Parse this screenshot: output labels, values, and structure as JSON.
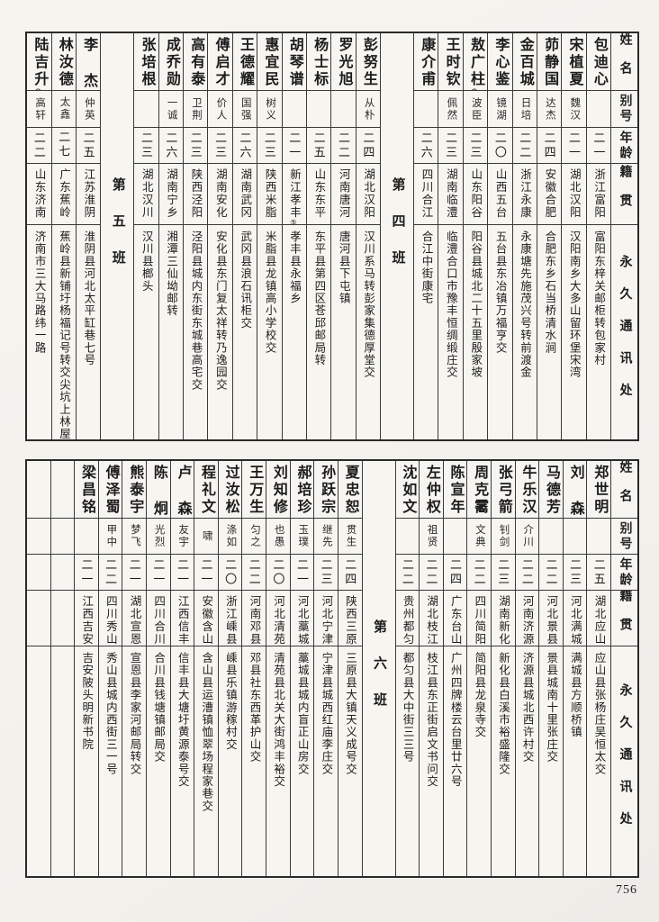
{
  "page": {
    "number": "756"
  },
  "headers": {
    "name": "姓名",
    "alias": "别号",
    "age": "年龄",
    "native": "籍贯",
    "address": "永久通讯处"
  },
  "tables": [
    {
      "id": "top",
      "columns": [
        {
          "type": "person",
          "name": "包迪心",
          "mark": "",
          "alias": "",
          "age": "二一",
          "native": "浙江富阳",
          "native_mark": "",
          "address": "富阳东梓关邮柜转包家村"
        },
        {
          "type": "person",
          "name": "宋植夏",
          "mark": "",
          "alias": "魏汉",
          "age": "二一",
          "native": "湖北汉阳",
          "native_mark": "",
          "address": "汉阳南乡大多山留环堡宋湾"
        },
        {
          "type": "person",
          "name": "茆静国",
          "mark": "",
          "alias": "达杰",
          "age": "二四",
          "native": "安徽合肥",
          "native_mark": "",
          "address": "合肥东乡石当桥清水涧"
        },
        {
          "type": "person",
          "name": "金百城",
          "mark": "",
          "alias": "日培",
          "age": "二二",
          "native": "浙江永康",
          "native_mark": "",
          "address": "永康塘先施茂兴号转前渡金"
        },
        {
          "type": "person",
          "name": "李心鉴",
          "mark": "",
          "alias": "镜湖",
          "age": "二〇",
          "native": "山西五台",
          "native_mark": "",
          "address": "五台县东冶镇万福亨交"
        },
        {
          "type": "person",
          "name": "敖广柱",
          "mark": "①",
          "alias": "波臣",
          "age": "二三",
          "native": "山东阳谷",
          "native_mark": "",
          "address": "阳谷县城北二十五里殷家坡"
        },
        {
          "type": "person",
          "name": "王时钦",
          "mark": "",
          "alias": "佩然",
          "age": "二三",
          "native": "湖南临澧",
          "native_mark": "",
          "address": "临澧合口市豫丰恒绸缎庄交"
        },
        {
          "type": "person",
          "name": "康介甫",
          "mark": "",
          "alias": "",
          "age": "二六",
          "native": "四川合江",
          "native_mark": "",
          "address": "合江中街康宅"
        },
        {
          "type": "marker",
          "label": "第四班"
        },
        {
          "type": "person",
          "name": "彭努生",
          "mark": "",
          "alias": "从朴",
          "age": "二四",
          "native": "湖北汉阳",
          "native_mark": "",
          "address": "汉川系马转彭家集德厚堂交"
        },
        {
          "type": "person",
          "name": "罗光旭",
          "mark": "",
          "alias": "",
          "age": "二二",
          "native": "河南唐河",
          "native_mark": "",
          "address": "唐河县下屯镇"
        },
        {
          "type": "person",
          "name": "杨士标",
          "mark": "",
          "alias": "",
          "age": "二五",
          "native": "山东东平",
          "native_mark": "",
          "address": "东平县第四区苍邱邮局转"
        },
        {
          "type": "person",
          "name": "胡琴谱",
          "mark": "",
          "alias": "",
          "age": "二一",
          "native": "新江孝丰",
          "native_mark": "⑤",
          "address": "孝丰县永福乡"
        },
        {
          "type": "person",
          "name": "惠宜民",
          "mark": "",
          "alias": "树义",
          "age": "二三",
          "native": "陕西米脂",
          "native_mark": "",
          "address": "米脂县龙镇高小学校交"
        },
        {
          "type": "person",
          "name": "王德耀",
          "mark": "",
          "alias": "国强",
          "age": "二六",
          "native": "湖南武冈",
          "native_mark": "",
          "address": "武冈县浪石讯柜交"
        },
        {
          "type": "person",
          "name": "傅启才",
          "mark": "",
          "alias": "价人",
          "age": "二三",
          "native": "湖南安化",
          "native_mark": "",
          "address": "安化县东门复太祥转乃逸园交"
        },
        {
          "type": "person",
          "name": "高有泰",
          "mark": "",
          "alias": "卫荆",
          "age": "二三",
          "native": "陕西泾阳",
          "native_mark": "",
          "address": "泾阳县城内东街东城巷高宅交"
        },
        {
          "type": "person",
          "name": "成乔勋",
          "mark": "",
          "alias": "一诚",
          "age": "二六",
          "native": "湖南宁乡",
          "native_mark": "",
          "address": "湘潭三仙坳邮转"
        },
        {
          "type": "person",
          "name": "张培根",
          "mark": "",
          "alias": "",
          "age": "二三",
          "native": "湖北汉川",
          "native_mark": "",
          "address": "汉川县榔头"
        },
        {
          "type": "marker",
          "label": "第五班"
        },
        {
          "type": "person",
          "name": "李杰",
          "mark": "",
          "alias": "仲英",
          "age": "二五",
          "native": "江苏淮阴",
          "native_mark": "",
          "address": "淮阴县河北太平缸巷七号"
        },
        {
          "type": "person",
          "name": "林汝德",
          "mark": "",
          "alias": "太鑫",
          "age": "二七",
          "native": "广东蕉岭",
          "native_mark": "",
          "address": "蕉岭县新铺圩杨福记号转交尖坑上林屋"
        },
        {
          "type": "person",
          "name": "陆吉升",
          "mark": "⑩",
          "alias": "高轩",
          "age": "二二",
          "native": "山东济南",
          "native_mark": "",
          "address": "济南市三大马路纬一路"
        }
      ]
    },
    {
      "id": "bottom",
      "columns": [
        {
          "type": "person",
          "name": "郑世明",
          "mark": "",
          "alias": "",
          "age": "二五",
          "native": "湖北应山",
          "native_mark": "",
          "address": "应山县张杨庄吴恒太交"
        },
        {
          "type": "person",
          "name": "刘森",
          "mark": "",
          "alias": "",
          "age": "二三",
          "native": "河北满城",
          "native_mark": "",
          "address": "满城县方顺桥镇"
        },
        {
          "type": "person",
          "name": "马德芳",
          "mark": "",
          "alias": "",
          "age": "二二",
          "native": "河北景县",
          "native_mark": "",
          "address": "景县城南十里张庄交"
        },
        {
          "type": "person",
          "name": "牛乐汉",
          "mark": "",
          "alias": "介川",
          "age": "二二",
          "native": "河南济源",
          "native_mark": "",
          "address": "济源县城北西许村交"
        },
        {
          "type": "person",
          "name": "张弓箭",
          "mark": "",
          "alias": "钊剑",
          "age": "二三",
          "native": "湖南新化",
          "native_mark": "",
          "address": "新化县白溪市裕盛隆交"
        },
        {
          "type": "person",
          "name": "周克霱",
          "mark": "",
          "alias": "文典",
          "age": "二二",
          "native": "四川简阳",
          "native_mark": "",
          "address": "简阳县龙泉寺交"
        },
        {
          "type": "person",
          "name": "陈宣年",
          "mark": "",
          "alias": "",
          "age": "二四",
          "native": "广东台山",
          "native_mark": "",
          "address": "广州四牌楼云台里廿六号"
        },
        {
          "type": "person",
          "name": "左仲权",
          "mark": "",
          "alias": "祖贤",
          "age": "二二",
          "native": "湖北枝江",
          "native_mark": "",
          "address": "枝江县东正街启文书问交"
        },
        {
          "type": "person",
          "name": "沈如文",
          "mark": "",
          "alias": "",
          "age": "二二",
          "native": "贵州都匀",
          "native_mark": "",
          "address": "都匀县大中街三三号"
        },
        {
          "type": "marker",
          "label": "第六班"
        },
        {
          "type": "person",
          "name": "夏忠恕",
          "mark": "",
          "alias": "贯生",
          "age": "二四",
          "native": "陕西三原",
          "native_mark": "",
          "address": "三原县大镇天义成号交"
        },
        {
          "type": "person",
          "name": "孙跃宗",
          "mark": "",
          "alias": "继先",
          "age": "二三",
          "native": "河北宁津",
          "native_mark": "",
          "address": "宁津县城西红庙李庄交"
        },
        {
          "type": "person",
          "name": "郝培珍",
          "mark": "",
          "alias": "玉璞",
          "age": "二一",
          "native": "河北藁城",
          "native_mark": "",
          "address": "藁城县城内盲正山房交"
        },
        {
          "type": "person",
          "name": "刘知修",
          "mark": "",
          "alias": "也愚",
          "age": "二〇",
          "native": "河北清苑",
          "native_mark": "",
          "address": "清苑县北关大街鸿丰裕交"
        },
        {
          "type": "person",
          "name": "王万生",
          "mark": "",
          "alias": "匀之",
          "age": "二二",
          "native": "河南邓县",
          "native_mark": "",
          "address": "邓县社东西革护山交"
        },
        {
          "type": "person",
          "name": "过汝松",
          "mark": "",
          "alias": "涤如",
          "age": "二〇",
          "native": "浙江嵊县",
          "native_mark": "",
          "address": "嵊县乐镇游稼村交"
        },
        {
          "type": "person",
          "name": "程礼文",
          "mark": "",
          "alias": "啸",
          "age": "二一",
          "native": "安徽含山",
          "native_mark": "",
          "address": "含山县运漕镇恤翠场程家巷交"
        },
        {
          "type": "person",
          "name": "卢森",
          "mark": "",
          "alias": "友宇",
          "age": "二一",
          "native": "江西信丰",
          "native_mark": "",
          "address": "信丰县大塘圩黄源泰号交"
        },
        {
          "type": "person",
          "name": "陈炯",
          "mark": "",
          "alias": "光烈",
          "age": "二一",
          "native": "四川合川",
          "native_mark": "",
          "address": "合川县钱塘镇邮局交"
        },
        {
          "type": "person",
          "name": "熊泰宇",
          "mark": "",
          "alias": "梦飞",
          "age": "二一",
          "native": "湖北宣恩",
          "native_mark": "",
          "address": "宣恩县李家河邮局转交"
        },
        {
          "type": "person",
          "name": "傅泽蜀",
          "mark": "",
          "alias": "甲中",
          "age": "二二",
          "native": "四川秀山",
          "native_mark": "",
          "address": "秀山县城内西街三一号"
        },
        {
          "type": "person",
          "name": "梁昌铭",
          "mark": "",
          "alias": "",
          "age": "二一",
          "native": "江西吉安",
          "native_mark": "",
          "address": "吉安陂头明新书院"
        },
        {
          "type": "empty"
        },
        {
          "type": "empty"
        }
      ]
    }
  ]
}
